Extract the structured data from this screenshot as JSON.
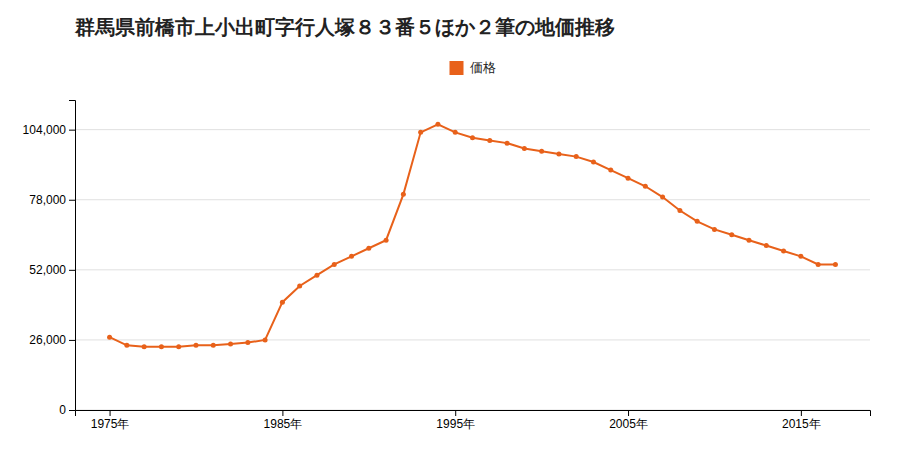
{
  "chart_data": {
    "type": "line",
    "title": "群馬県前橋市上小出町字行人塚８３番５ほか２筆の地価推移",
    "x": [
      1975,
      1976,
      1977,
      1978,
      1979,
      1980,
      1981,
      1982,
      1983,
      1984,
      1985,
      1986,
      1987,
      1988,
      1989,
      1990,
      1991,
      1992,
      1993,
      1994,
      1995,
      1996,
      1997,
      1998,
      1999,
      2000,
      2001,
      2002,
      2003,
      2004,
      2005,
      2006,
      2007,
      2008,
      2009,
      2010,
      2011,
      2012,
      2013,
      2014,
      2015,
      2016,
      2017
    ],
    "series": [
      {
        "name": "価格",
        "color": "#E8611A",
        "marker": "circle",
        "values": [
          27000,
          24000,
          23500,
          23500,
          23500,
          24000,
          24000,
          24500,
          25000,
          26000,
          40000,
          46000,
          50000,
          54000,
          57000,
          60000,
          63000,
          80000,
          103000,
          106000,
          103000,
          101000,
          100000,
          99000,
          97000,
          96000,
          95000,
          94000,
          92000,
          89000,
          86000,
          83000,
          79000,
          74000,
          70000,
          67000,
          65000,
          63000,
          61000,
          59000,
          57000,
          54000,
          54000
        ]
      }
    ],
    "xlim": [
      1973,
      2019
    ],
    "xticks": [
      {
        "value": 1975,
        "label": "1975年"
      },
      {
        "value": 1985,
        "label": "1985年"
      },
      {
        "value": 1995,
        "label": "1995年"
      },
      {
        "value": 2005,
        "label": "2005年"
      },
      {
        "value": 2015,
        "label": "2015年"
      }
    ],
    "ylim": [
      0,
      115000
    ],
    "yticks": [
      0,
      {
        "value": 26000,
        "label": "26,000"
      },
      {
        "value": 52000,
        "label": "52,000"
      },
      {
        "value": 78000,
        "label": "78,000"
      },
      {
        "value": 104000,
        "label": "104,000"
      }
    ],
    "grid": true,
    "legend": "top"
  }
}
